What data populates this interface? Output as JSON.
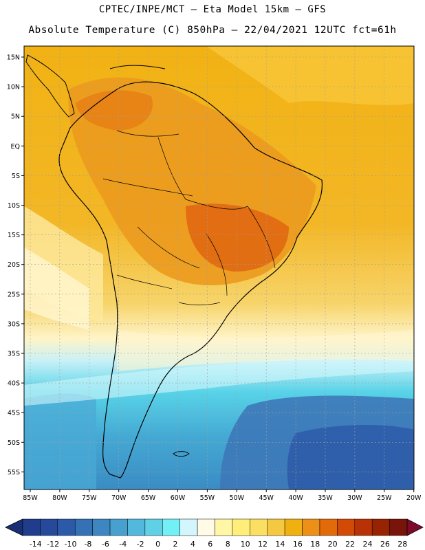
{
  "header": {
    "line1": "CPTEC/INPE/MCT –  Eta Model 15km – GFS",
    "line2": "Absolute Temperature (C) 850hPa – 22/04/2021 12UTC fct=61h"
  },
  "map": {
    "lat_labels": [
      "15N",
      "10N",
      "5N",
      "EQ",
      "5S",
      "10S",
      "15S",
      "20S",
      "25S",
      "30S",
      "35S",
      "40S",
      "45S",
      "50S",
      "55S"
    ],
    "lon_labels": [
      "85W",
      "80W",
      "75W",
      "70W",
      "65W",
      "60W",
      "55W",
      "50W",
      "45W",
      "40W",
      "35W",
      "30W",
      "25W",
      "20W"
    ],
    "grid_color": "#a0a0a0"
  },
  "colorbar": {
    "labels": [
      "-14",
      "-12",
      "-10",
      "-8",
      "-6",
      "-4",
      "-2",
      "0",
      "2",
      "4",
      "6",
      "8",
      "10",
      "12",
      "14",
      "16",
      "18",
      "20",
      "22",
      "24",
      "26",
      "28"
    ],
    "colors": [
      "#1f3d8c",
      "#27499b",
      "#2d5aa8",
      "#3471b5",
      "#3d86c2",
      "#48a0cf",
      "#52b8dc",
      "#5fd0e6",
      "#73f0f5",
      "#d2f6fb",
      "#fffbe6",
      "#fff7a5",
      "#ffef7a",
      "#fbdf62",
      "#f5c842",
      "#f0b010",
      "#ec9018",
      "#e26a08",
      "#d24a06",
      "#b83205",
      "#972303",
      "#78140a"
    ],
    "min_arrow_color": "#1a2e73",
    "max_arrow_color": "#7d0a2a"
  }
}
